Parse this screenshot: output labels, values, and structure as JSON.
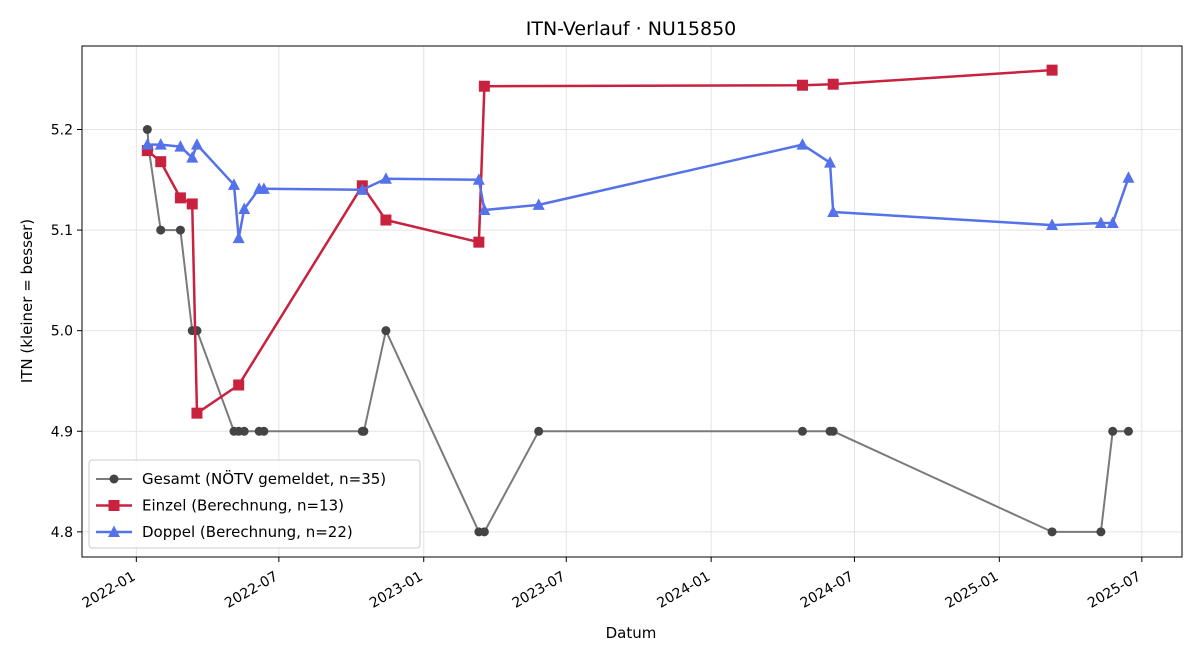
{
  "chart_data": {
    "type": "line",
    "title": "ITN-Verlauf · NU15850",
    "xlabel": "Datum",
    "ylabel": "ITN  (kleiner = besser)",
    "x_tick_labels": [
      "2022-01",
      "2022-07",
      "2023-01",
      "2023-07",
      "2024-01",
      "2024-07",
      "2025-01",
      "2025-07"
    ],
    "y_tick_labels": [
      "4.8",
      "4.9",
      "5.0",
      "5.1",
      "5.2"
    ],
    "ylim": [
      4.775,
      5.283
    ],
    "xlim": [
      "2021-10-24",
      "2025-08-21"
    ],
    "grid": true,
    "legend_position": "lower-left",
    "series": [
      {
        "name": "Gesamt (NÖTV gemeldet, n=35)",
        "color": "#7a7a7a",
        "marker_color": "#444444",
        "marker": "circle",
        "points": [
          [
            "2022-01-15",
            5.2
          ],
          [
            "2022-01-17",
            5.18
          ],
          [
            "2022-02-01",
            5.1
          ],
          [
            "2022-02-26",
            5.1
          ],
          [
            "2022-03-13",
            5.0
          ],
          [
            "2022-03-19",
            5.0
          ],
          [
            "2022-05-05",
            4.9
          ],
          [
            "2022-05-11",
            4.9
          ],
          [
            "2022-05-18",
            4.9
          ],
          [
            "2022-06-06",
            4.9
          ],
          [
            "2022-06-12",
            4.9
          ],
          [
            "2022-10-15",
            4.9
          ],
          [
            "2022-10-17",
            4.9
          ],
          [
            "2022-11-14",
            5.0
          ],
          [
            "2023-03-12",
            4.8
          ],
          [
            "2023-03-19",
            4.8
          ],
          [
            "2023-05-27",
            4.9
          ],
          [
            "2024-04-26",
            4.9
          ],
          [
            "2024-05-31",
            4.9
          ],
          [
            "2024-06-04",
            4.9
          ],
          [
            "2025-03-09",
            4.8
          ],
          [
            "2025-05-10",
            4.8
          ],
          [
            "2025-05-25",
            4.9
          ],
          [
            "2025-06-14",
            4.9
          ]
        ]
      },
      {
        "name": "Einzel (Berechnung, n=13)",
        "color": "#c8223f",
        "marker": "square",
        "points": [
          [
            "2022-01-15",
            5.179
          ],
          [
            "2022-02-01",
            5.168
          ],
          [
            "2022-02-26",
            5.132
          ],
          [
            "2022-03-13",
            5.126
          ],
          [
            "2022-03-19",
            4.918
          ],
          [
            "2022-05-11",
            4.946
          ],
          [
            "2022-10-15",
            5.144
          ],
          [
            "2022-11-14",
            5.11
          ],
          [
            "2023-03-12",
            5.088
          ],
          [
            "2023-03-19",
            5.243
          ],
          [
            "2024-04-26",
            5.244
          ],
          [
            "2024-06-04",
            5.245
          ],
          [
            "2025-03-09",
            5.259
          ]
        ]
      },
      {
        "name": "Doppel (Berechnung, n=22)",
        "color": "#5572ea",
        "marker": "triangle",
        "points": [
          [
            "2022-01-15",
            5.185
          ],
          [
            "2022-02-01",
            5.185
          ],
          [
            "2022-02-26",
            5.183
          ],
          [
            "2022-03-13",
            5.172
          ],
          [
            "2022-03-19",
            5.185
          ],
          [
            "2022-05-05",
            5.145
          ],
          [
            "2022-05-11",
            5.092
          ],
          [
            "2022-05-18",
            5.121
          ],
          [
            "2022-06-06",
            5.141
          ],
          [
            "2022-06-12",
            5.141
          ],
          [
            "2022-10-15",
            5.14
          ],
          [
            "2022-11-14",
            5.151
          ],
          [
            "2023-03-12",
            5.15
          ],
          [
            "2023-03-19",
            5.12
          ],
          [
            "2023-05-27",
            5.125
          ],
          [
            "2024-04-26",
            5.185
          ],
          [
            "2024-05-31",
            5.167
          ],
          [
            "2024-06-04",
            5.118
          ],
          [
            "2025-03-09",
            5.105
          ],
          [
            "2025-05-10",
            5.107
          ],
          [
            "2025-05-25",
            5.107
          ],
          [
            "2025-06-14",
            5.152
          ]
        ]
      }
    ]
  }
}
